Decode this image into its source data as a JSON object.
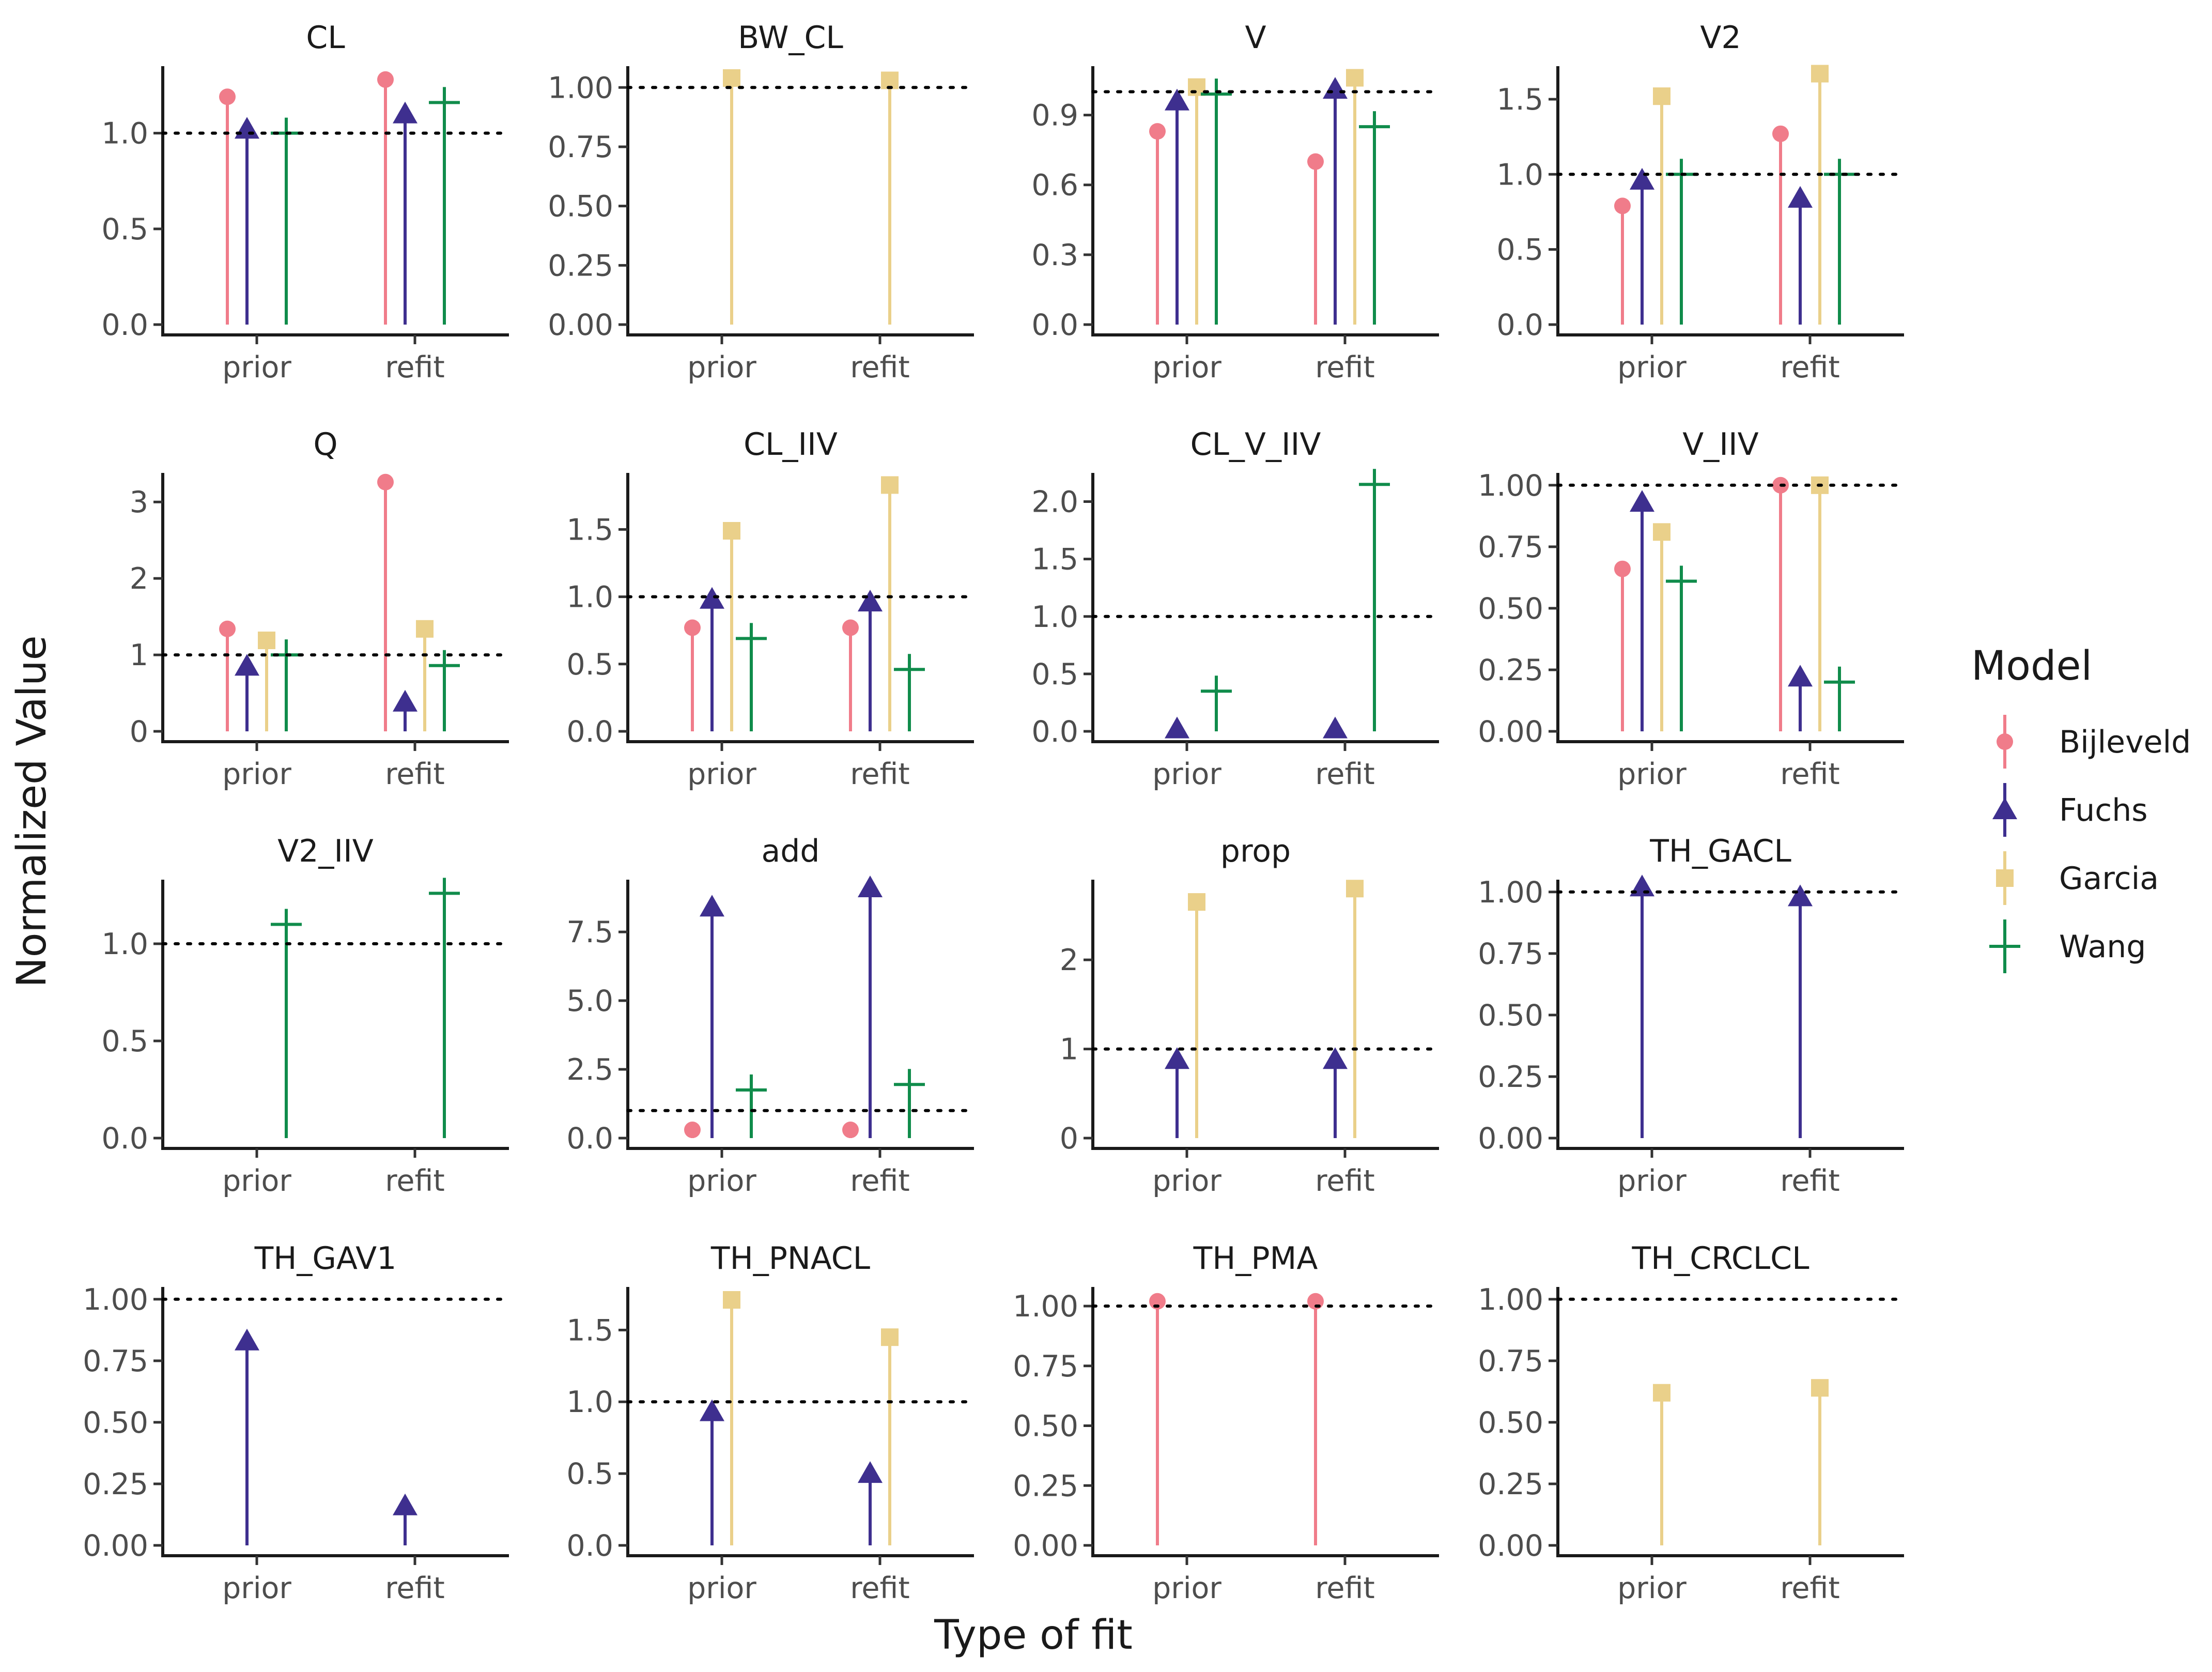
{
  "chart_data": {
    "type": "lollipop-facets",
    "xlabel": "Type of fit",
    "ylabel": "Normalized Value",
    "categories": [
      "prior",
      "refit"
    ],
    "reference_line": 1.0,
    "legend": {
      "title": "Model",
      "position": "right",
      "entries": [
        {
          "name": "Bijleveld",
          "color": "#F07C8A",
          "shape": "circle"
        },
        {
          "name": "Fuchs",
          "color": "#3E2F8F",
          "shape": "triangle"
        },
        {
          "name": "Garcia",
          "color": "#EAD08A",
          "shape": "square"
        },
        {
          "name": "Wang",
          "color": "#108C4B",
          "shape": "plus"
        }
      ]
    },
    "panels": [
      {
        "title": "CL",
        "ylim": [
          0,
          1.35
        ],
        "ticks": [
          {
            "v": 0,
            "label": "0.0"
          },
          {
            "v": 0.5,
            "label": "0.5"
          },
          {
            "v": 1,
            "label": "1.0"
          }
        ],
        "series": [
          {
            "model": "Bijleveld",
            "values": [
              1.19,
              1.28
            ]
          },
          {
            "model": "Fuchs",
            "values": [
              1.02,
              1.1
            ]
          },
          {
            "model": "Wang",
            "values": [
              1.0,
              1.16
            ]
          }
        ]
      },
      {
        "title": "BW_CL",
        "ylim": [
          0,
          1.09
        ],
        "ticks": [
          {
            "v": 0,
            "label": "0.00"
          },
          {
            "v": 0.25,
            "label": "0.25"
          },
          {
            "v": 0.5,
            "label": "0.50"
          },
          {
            "v": 0.75,
            "label": "0.75"
          },
          {
            "v": 1,
            "label": "1.00"
          }
        ],
        "series": [
          {
            "model": "Garcia",
            "values": [
              1.04,
              1.03
            ]
          }
        ]
      },
      {
        "title": "V",
        "ylim": [
          0,
          1.11
        ],
        "ticks": [
          {
            "v": 0,
            "label": "0.0"
          },
          {
            "v": 0.3,
            "label": "0.3"
          },
          {
            "v": 0.6,
            "label": "0.6"
          },
          {
            "v": 0.9,
            "label": "0.9"
          }
        ],
        "series": [
          {
            "model": "Bijleveld",
            "values": [
              0.83,
              0.7
            ]
          },
          {
            "model": "Fuchs",
            "values": [
              0.96,
              1.01
            ]
          },
          {
            "model": "Garcia",
            "values": [
              1.02,
              1.06
            ]
          },
          {
            "model": "Wang",
            "values": [
              0.99,
              0.85
            ]
          }
        ]
      },
      {
        "title": "V2",
        "ylim": [
          0,
          1.72
        ],
        "ticks": [
          {
            "v": 0,
            "label": "0.0"
          },
          {
            "v": 0.5,
            "label": "0.5"
          },
          {
            "v": 1,
            "label": "1.0"
          },
          {
            "v": 1.5,
            "label": "1.5"
          }
        ],
        "series": [
          {
            "model": "Bijleveld",
            "values": [
              0.79,
              1.27
            ]
          },
          {
            "model": "Fuchs",
            "values": [
              0.96,
              0.84
            ]
          },
          {
            "model": "Garcia",
            "values": [
              1.52,
              1.67
            ]
          },
          {
            "model": "Wang",
            "values": [
              1.0,
              1.0
            ]
          }
        ]
      },
      {
        "title": "Q",
        "ylim": [
          0,
          3.38
        ],
        "ticks": [
          {
            "v": 0,
            "label": "0"
          },
          {
            "v": 1,
            "label": "1"
          },
          {
            "v": 2,
            "label": "2"
          },
          {
            "v": 3,
            "label": "3"
          }
        ],
        "series": [
          {
            "model": "Bijleveld",
            "values": [
              1.34,
              3.26
            ]
          },
          {
            "model": "Fuchs",
            "values": [
              0.85,
              0.38
            ]
          },
          {
            "model": "Garcia",
            "values": [
              1.19,
              1.34
            ]
          },
          {
            "model": "Wang",
            "values": [
              1.0,
              0.86
            ]
          }
        ]
      },
      {
        "title": "CL_IIV",
        "ylim": [
          0,
          1.92
        ],
        "ticks": [
          {
            "v": 0,
            "label": "0.0"
          },
          {
            "v": 0.5,
            "label": "0.5"
          },
          {
            "v": 1,
            "label": "1.0"
          },
          {
            "v": 1.5,
            "label": "1.5"
          }
        ],
        "series": [
          {
            "model": "Bijleveld",
            "values": [
              0.77,
              0.77
            ]
          },
          {
            "model": "Fuchs",
            "values": [
              0.98,
              0.96
            ]
          },
          {
            "model": "Garcia",
            "values": [
              1.49,
              1.83
            ]
          },
          {
            "model": "Wang",
            "values": [
              0.69,
              0.46
            ]
          }
        ]
      },
      {
        "title": "CL_V_IIV",
        "ylim": [
          0,
          2.25
        ],
        "ticks": [
          {
            "v": 0,
            "label": "0.0"
          },
          {
            "v": 0.5,
            "label": "0.5"
          },
          {
            "v": 1,
            "label": "1.0"
          },
          {
            "v": 1.5,
            "label": "1.5"
          },
          {
            "v": 2,
            "label": "2.0"
          }
        ],
        "series": [
          {
            "model": "Fuchs",
            "values": [
              0.02,
              0.02
            ]
          },
          {
            "model": "Wang",
            "values": [
              0.35,
              2.15
            ]
          }
        ]
      },
      {
        "title": "V_IIV",
        "ylim": [
          0,
          1.05
        ],
        "ticks": [
          {
            "v": 0,
            "label": "0.00"
          },
          {
            "v": 0.25,
            "label": "0.25"
          },
          {
            "v": 0.5,
            "label": "0.50"
          },
          {
            "v": 0.75,
            "label": "0.75"
          },
          {
            "v": 1,
            "label": "1.00"
          }
        ],
        "series": [
          {
            "model": "Bijleveld",
            "values": [
              0.66,
              1.0
            ]
          },
          {
            "model": "Fuchs",
            "values": [
              0.93,
              0.22
            ]
          },
          {
            "model": "Garcia",
            "values": [
              0.81,
              1.0
            ]
          },
          {
            "model": "Wang",
            "values": [
              0.61,
              0.2
            ]
          }
        ]
      },
      {
        "title": "V2_IIV",
        "ylim": [
          0,
          1.33
        ],
        "ticks": [
          {
            "v": 0,
            "label": "0.0"
          },
          {
            "v": 0.5,
            "label": "0.5"
          },
          {
            "v": 1,
            "label": "1.0"
          }
        ],
        "series": [
          {
            "model": "Wang",
            "values": [
              1.1,
              1.26
            ]
          }
        ]
      },
      {
        "title": "add",
        "ylim": [
          0,
          9.4
        ],
        "ticks": [
          {
            "v": 0,
            "label": "0.0"
          },
          {
            "v": 2.5,
            "label": "2.5"
          },
          {
            "v": 5,
            "label": "5.0"
          },
          {
            "v": 7.5,
            "label": "7.5"
          }
        ],
        "series": [
          {
            "model": "Bijleveld",
            "values": [
              0.3,
              0.3
            ]
          },
          {
            "model": "Fuchs",
            "values": [
              8.4,
              9.1
            ]
          },
          {
            "model": "Wang",
            "values": [
              1.75,
              1.95
            ]
          }
        ]
      },
      {
        "title": "prop",
        "ylim": [
          0,
          2.9
        ],
        "ticks": [
          {
            "v": 0,
            "label": "0"
          },
          {
            "v": 1,
            "label": "1"
          },
          {
            "v": 2,
            "label": "2"
          }
        ],
        "series": [
          {
            "model": "Fuchs",
            "values": [
              0.88,
              0.88
            ]
          },
          {
            "model": "Garcia",
            "values": [
              2.65,
              2.8
            ]
          }
        ]
      },
      {
        "title": "TH_GACL",
        "ylim": [
          0,
          1.05
        ],
        "ticks": [
          {
            "v": 0,
            "label": "0.00"
          },
          {
            "v": 0.25,
            "label": "0.25"
          },
          {
            "v": 0.5,
            "label": "0.50"
          },
          {
            "v": 0.75,
            "label": "0.75"
          },
          {
            "v": 1,
            "label": "1.00"
          }
        ],
        "series": [
          {
            "model": "Fuchs",
            "values": [
              1.02,
              0.98
            ]
          }
        ]
      },
      {
        "title": "TH_GAV1",
        "ylim": [
          0,
          1.05
        ],
        "ticks": [
          {
            "v": 0,
            "label": "0.00"
          },
          {
            "v": 0.25,
            "label": "0.25"
          },
          {
            "v": 0.5,
            "label": "0.50"
          },
          {
            "v": 0.75,
            "label": "0.75"
          },
          {
            "v": 1,
            "label": "1.00"
          }
        ],
        "series": [
          {
            "model": "Fuchs",
            "values": [
              0.83,
              0.16
            ]
          }
        ]
      },
      {
        "title": "TH_PNACL",
        "ylim": [
          0,
          1.8
        ],
        "ticks": [
          {
            "v": 0,
            "label": "0.0"
          },
          {
            "v": 0.5,
            "label": "0.5"
          },
          {
            "v": 1,
            "label": "1.0"
          },
          {
            "v": 1.5,
            "label": "1.5"
          }
        ],
        "series": [
          {
            "model": "Fuchs",
            "values": [
              0.93,
              0.5
            ]
          },
          {
            "model": "Garcia",
            "values": [
              1.71,
              1.45
            ]
          }
        ]
      },
      {
        "title": "TH_PMA",
        "ylim": [
          0,
          1.08
        ],
        "ticks": [
          {
            "v": 0,
            "label": "0.00"
          },
          {
            "v": 0.25,
            "label": "0.25"
          },
          {
            "v": 0.5,
            "label": "0.50"
          },
          {
            "v": 0.75,
            "label": "0.75"
          },
          {
            "v": 1,
            "label": "1.00"
          }
        ],
        "series": [
          {
            "model": "Bijleveld",
            "values": [
              1.02,
              1.02
            ]
          }
        ]
      },
      {
        "title": "TH_CRCLCL",
        "ylim": [
          0,
          1.05
        ],
        "ticks": [
          {
            "v": 0,
            "label": "0.00"
          },
          {
            "v": 0.25,
            "label": "0.25"
          },
          {
            "v": 0.5,
            "label": "0.50"
          },
          {
            "v": 0.75,
            "label": "0.75"
          },
          {
            "v": 1,
            "label": "1.00"
          }
        ],
        "series": [
          {
            "model": "Garcia",
            "values": [
              0.62,
              0.64
            ]
          }
        ]
      }
    ]
  }
}
